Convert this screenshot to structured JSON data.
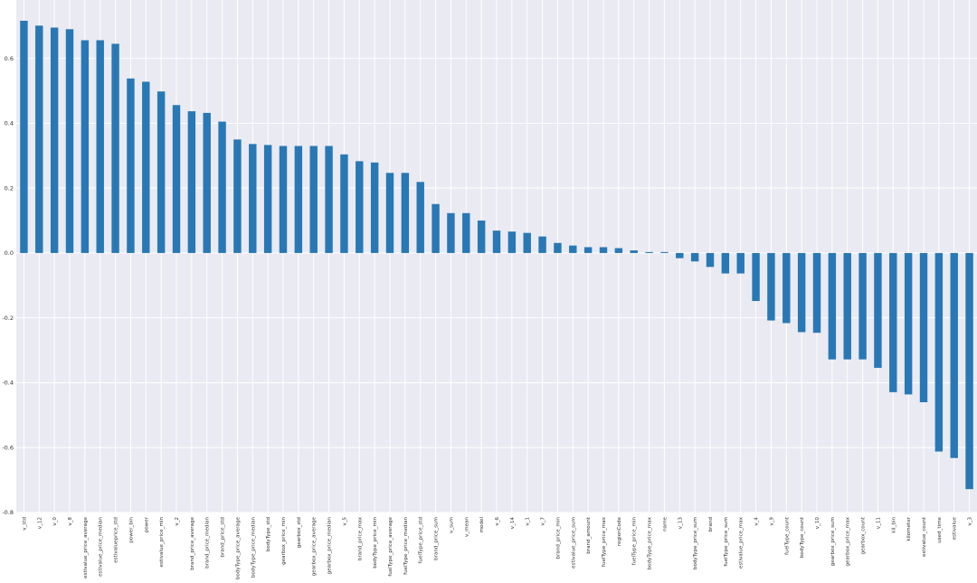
{
  "chart_data": {
    "type": "bar",
    "title": "",
    "xlabel": "",
    "ylabel": "",
    "ylim": [
      -0.8,
      0.78
    ],
    "yticks": [
      -0.8,
      -0.6,
      -0.4,
      -0.2,
      0.0,
      0.2,
      0.4,
      0.6
    ],
    "ytick_labels": [
      "-0.8",
      "-0.6",
      "-0.4",
      "-0.2",
      "0.0",
      "0.2",
      "0.4",
      "0.6"
    ],
    "grid": true,
    "bar_color": "#2878b5",
    "background_color": "#eaeaf2",
    "categories": [
      "v_std",
      "v_12",
      "v_0",
      "v_8",
      "estivalue_price_average",
      "estivalue_price_median",
      "estivalueprice_std",
      "power_bin",
      "power",
      "estivalue_price_min",
      "v_2",
      "brand_price_average",
      "brand_price_median",
      "brand_price_std",
      "bodyType_price_average",
      "bodyType_price_median",
      "bodyType_std",
      "gearbox_price_min",
      "gearbox_std",
      "gearbox_price_average",
      "gearbox_price_median",
      "v_5",
      "brand_price_max",
      "bodyType_price_min",
      "fuelType_price_average",
      "fuelType_price_median",
      "fuelType_price_std",
      "brand_price_sum",
      "v_sum",
      "v_mean",
      "model",
      "v_6",
      "v_14",
      "v_1",
      "v_7",
      "brand_price_min",
      "estivalue_price_sum",
      "brand_amount",
      "fuelType_price_max",
      "regionCode",
      "fuelType_price_min",
      "bodyType_price_max",
      "name",
      "v_13",
      "bodyType_price_sum",
      "brand",
      "fuelType_price_sum",
      "estivalue_price_max",
      "v_4",
      "v_9",
      "fuelType_count",
      "bodyType_count",
      "v_10",
      "gearbox_price_sum",
      "gearbox_price_max",
      "gearbox_count",
      "v_11",
      "kil_bin",
      "kilometer",
      "estivalue_count",
      "used_time",
      "estivalue",
      "v_3"
    ],
    "values": [
      0.716,
      0.701,
      0.695,
      0.69,
      0.656,
      0.656,
      0.645,
      0.538,
      0.528,
      0.498,
      0.456,
      0.437,
      0.432,
      0.405,
      0.35,
      0.336,
      0.333,
      0.33,
      0.33,
      0.33,
      0.33,
      0.304,
      0.283,
      0.279,
      0.247,
      0.247,
      0.219,
      0.151,
      0.123,
      0.123,
      0.1,
      0.069,
      0.066,
      0.062,
      0.051,
      0.031,
      0.023,
      0.018,
      0.018,
      0.015,
      0.008,
      0.003,
      0.003,
      -0.016,
      -0.026,
      -0.043,
      -0.063,
      -0.063,
      -0.148,
      -0.208,
      -0.216,
      -0.244,
      -0.246,
      -0.328,
      -0.328,
      -0.328,
      -0.354,
      -0.429,
      -0.436,
      -0.46,
      -0.612,
      -0.632,
      -0.728
    ]
  }
}
